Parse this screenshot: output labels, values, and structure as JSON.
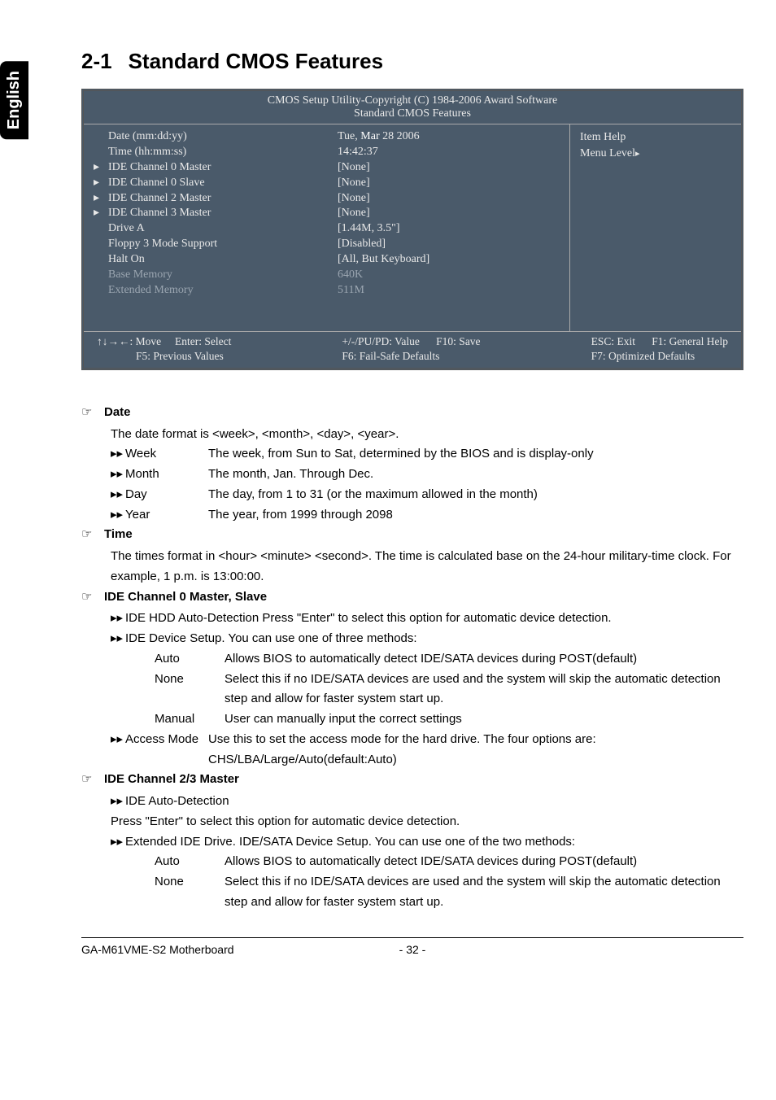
{
  "side_tab": "English",
  "title": {
    "num": "2-1",
    "text": "Standard CMOS Features"
  },
  "bios": {
    "header1": "CMOS Setup Utility-Copyright (C) 1984-2006 Award Software",
    "header2": "Standard CMOS Features",
    "rows": [
      {
        "arrow": "",
        "label": "Date (mm:dd:yy)",
        "value": "Tue, Mar 28 2006",
        "dim": false,
        "value_html": true
      },
      {
        "arrow": "",
        "label": "Time (hh:mm:ss)",
        "value": "14:42:37",
        "dim": false
      },
      {
        "arrow": "",
        "label": "",
        "value": "",
        "dim": false
      },
      {
        "arrow": "▸",
        "label": "IDE Channel 0 Master",
        "value": "[None]",
        "dim": false
      },
      {
        "arrow": "▸",
        "label": "IDE Channel 0 Slave",
        "value": "[None]",
        "dim": false
      },
      {
        "arrow": "▸",
        "label": "IDE Channel 2 Master",
        "value": "[None]",
        "dim": false
      },
      {
        "arrow": "▸",
        "label": "IDE Channel 3 Master",
        "value": "[None]",
        "dim": false
      },
      {
        "arrow": "",
        "label": "",
        "value": "",
        "dim": false
      },
      {
        "arrow": "",
        "label": "",
        "value": "",
        "dim": false
      },
      {
        "arrow": "",
        "label": "Drive A",
        "value": "[1.44M, 3.5\"]",
        "dim": false
      },
      {
        "arrow": "",
        "label": "Floppy 3 Mode Support",
        "value": "[Disabled]",
        "dim": false
      },
      {
        "arrow": "",
        "label": "",
        "value": "",
        "dim": false
      },
      {
        "arrow": "",
        "label": "Halt On",
        "value": "[All, But Keyboard]",
        "dim": false
      },
      {
        "arrow": "",
        "label": "",
        "value": "",
        "dim": false
      },
      {
        "arrow": "",
        "label": "Base Memory",
        "value": "640K",
        "dim": true
      },
      {
        "arrow": "",
        "label": "Extended Memory",
        "value": "511M",
        "dim": true
      }
    ],
    "right": {
      "line1": "Item Help",
      "line2": "Menu Level"
    },
    "footer": {
      "c1a": "↑↓→←: Move",
      "c1b": "Enter: Select",
      "c2a": "+/-/PU/PD: Value",
      "c2b": "F10: Save",
      "c3a": "ESC: Exit",
      "c3b": "F1: General Help",
      "r2a": "F5: Previous Values",
      "r2b": "F6: Fail-Safe Defaults",
      "r2c": "F7: Optimized Defaults"
    }
  },
  "desc": {
    "date": {
      "title": "Date",
      "intro": "The date format is <week>, <month>, <day>, <year>.",
      "items": [
        {
          "label": "Week",
          "text": "The week, from Sun to Sat, determined by the BIOS and is display-only"
        },
        {
          "label": "Month",
          "text": "The month, Jan. Through Dec."
        },
        {
          "label": "Day",
          "text": "The day, from 1 to 31 (or the maximum allowed in the month)"
        },
        {
          "label": "Year",
          "text": "The year, from 1999 through 2098"
        }
      ]
    },
    "time": {
      "title": "Time",
      "text": "The times format in <hour> <minute> <second>. The time is calculated base on the 24-hour military-time clock. For example, 1 p.m. is 13:00:00."
    },
    "ide0": {
      "title": "IDE Channel 0 Master, Slave",
      "l1": "IDE HDD Auto-Detection  Press \"Enter\" to select this option for automatic device detection.",
      "l2": "IDE Device Setup.  You can use one of three methods:",
      "opts": [
        {
          "label": "Auto",
          "text": "Allows BIOS to automatically detect IDE/SATA devices during POST(default)"
        },
        {
          "label": "None",
          "text": "Select this if no IDE/SATA devices are used and the system will skip the automatic detection step and allow for faster system start up."
        },
        {
          "label": "Manual",
          "text": "User can manually input the correct settings"
        }
      ],
      "l3a": "Access Mode",
      "l3b": "Use this to set the access mode for the hard drive. The four options are: CHS/LBA/Large/Auto(default:Auto)"
    },
    "ide23": {
      "title": "IDE Channel 2/3 Master",
      "l1": "IDE Auto-Detection",
      "l2": "Press \"Enter\" to select this option for automatic device detection.",
      "l3": "Extended IDE Drive.   IDE/SATA Device Setup.  You can use one of the two methods:",
      "opts": [
        {
          "label": "Auto",
          "text": "Allows BIOS to automatically detect IDE/SATA devices during POST(default)"
        },
        {
          "label": "None",
          "text": "Select this if no IDE/SATA devices are used and the system will skip the automatic detection step and allow for faster system start up."
        }
      ]
    }
  },
  "footer": {
    "left": "GA-M61VME-S2 Motherboard",
    "center": "- 32 -"
  }
}
